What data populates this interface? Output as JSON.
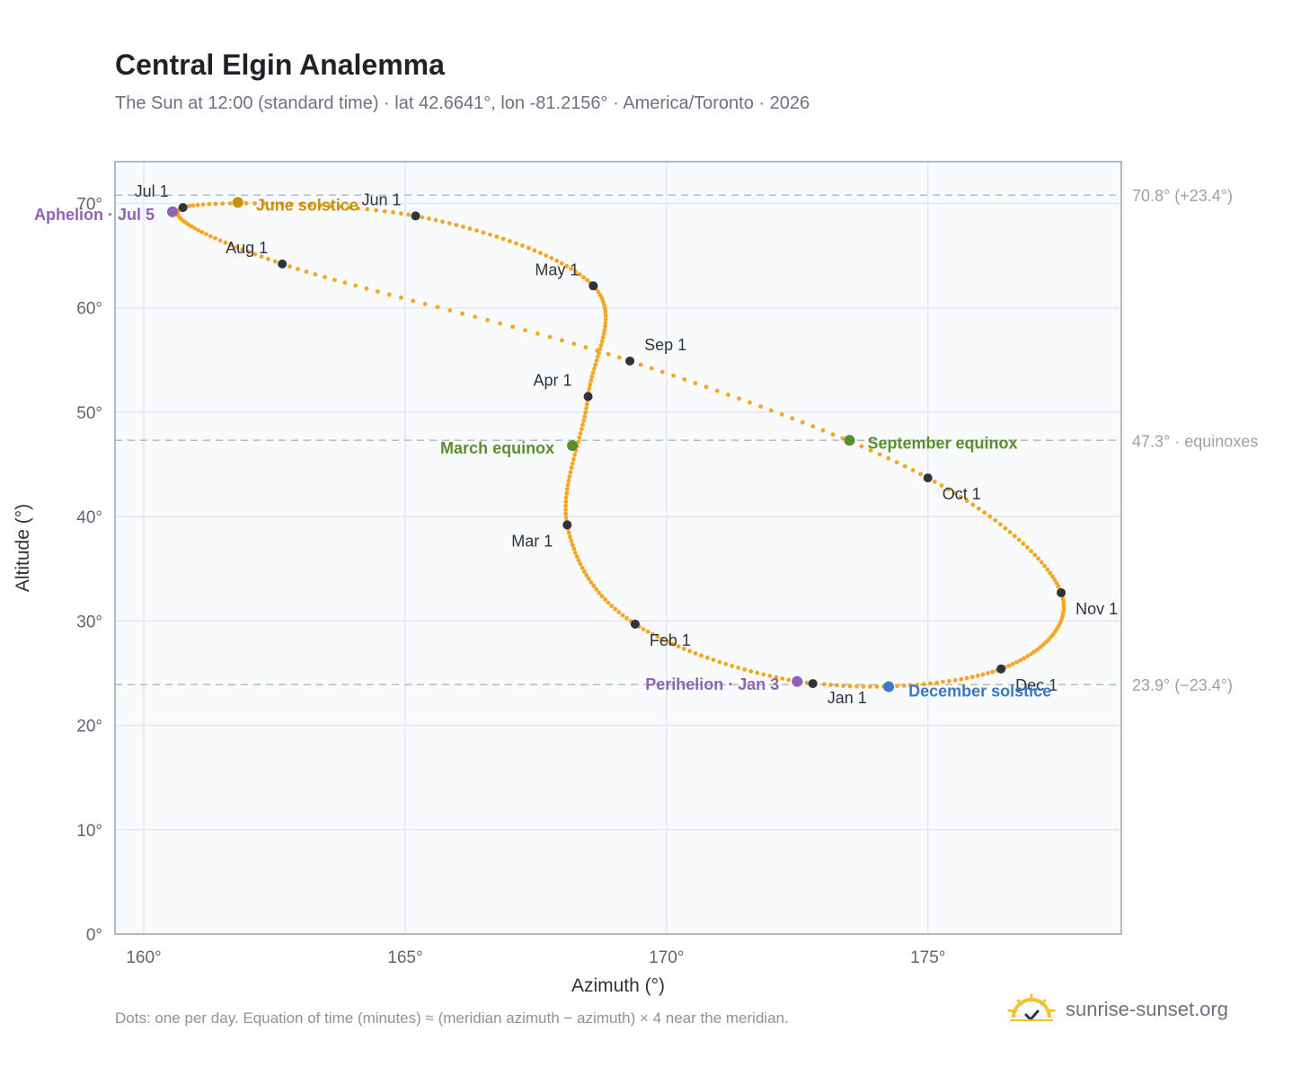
{
  "header": {
    "title": "Central Elgin Analemma",
    "subtitle": "The Sun at 12:00 (standard time) · lat 42.6641°, lon -81.2156° · America/Toronto · 2026"
  },
  "footer": {
    "note": "Dots: one per day. Equation of time (minutes) ≈ (meridian azimuth − azimuth) × 4 near the meridian.",
    "brand": "sunrise-sunset.org"
  },
  "chart_data": {
    "type": "scatter",
    "title": "Central Elgin Analemma",
    "xlabel": "Azimuth (°)",
    "ylabel": "Altitude (°)",
    "xlim": [
      159.45,
      178.7
    ],
    "ylim": [
      0,
      74
    ],
    "x_ticks": [
      160,
      165,
      170,
      175
    ],
    "x_tick_labels": [
      "160°",
      "165°",
      "170°",
      "175°"
    ],
    "y_ticks": [
      0,
      10,
      20,
      30,
      40,
      50,
      60,
      70
    ],
    "y_tick_labels": [
      "0°",
      "10°",
      "20°",
      "30°",
      "40°",
      "50°",
      "60°",
      "70°"
    ],
    "grid": true,
    "colors": {
      "path": "#f5a623",
      "month": "#2e343b",
      "solstice_june": "#c9900f",
      "solstice_dec": "#3a78c9",
      "equinox": "#5a8f2c",
      "apsis": "#8e63b5",
      "plot_bg": "#f8fafc",
      "reference": "#b4bcc4",
      "reference_text": "#9aa1a9"
    },
    "path_keypoints": [
      {
        "date": "Jan 1",
        "az": 172.8,
        "alt": 24.0
      },
      {
        "date": "Feb 1",
        "az": 169.4,
        "alt": 29.7
      },
      {
        "date": "Mar 1",
        "az": 168.1,
        "alt": 39.2
      },
      {
        "date": "Apr 1",
        "az": 168.5,
        "alt": 51.5
      },
      {
        "date": "May 1",
        "az": 168.6,
        "alt": 62.1
      },
      {
        "date": "Jun 1",
        "az": 165.2,
        "alt": 68.8
      },
      {
        "date": "Jul 1",
        "az": 160.75,
        "alt": 69.6
      },
      {
        "date": "Aug 1",
        "az": 162.65,
        "alt": 64.2
      },
      {
        "date": "Sep 1",
        "az": 169.3,
        "alt": 54.9
      },
      {
        "date": "Oct 1",
        "az": 175.0,
        "alt": 43.7
      },
      {
        "date": "Nov 1",
        "az": 177.55,
        "alt": 32.7
      },
      {
        "date": "Dec 1",
        "az": 176.4,
        "alt": 25.4
      },
      {
        "date": "Dec 31",
        "az": 172.9,
        "alt": 24.0
      }
    ],
    "month_markers": [
      {
        "label": "Jan 1",
        "az": 172.8,
        "alt": 24.0,
        "anchor": "start",
        "dx": 16,
        "dy": 22
      },
      {
        "label": "Feb 1",
        "az": 169.4,
        "alt": 29.7,
        "anchor": "start",
        "dx": 16,
        "dy": 24
      },
      {
        "label": "Mar 1",
        "az": 168.1,
        "alt": 39.2,
        "anchor": "end",
        "dx": -16,
        "dy": 24
      },
      {
        "label": "Apr 1",
        "az": 168.5,
        "alt": 51.5,
        "anchor": "end",
        "dx": -18,
        "dy": -12
      },
      {
        "label": "May 1",
        "az": 168.6,
        "alt": 62.1,
        "anchor": "end",
        "dx": -16,
        "dy": -12
      },
      {
        "label": "Jun 1",
        "az": 165.2,
        "alt": 68.8,
        "anchor": "end",
        "dx": -16,
        "dy": -12
      },
      {
        "label": "Jul 1",
        "az": 160.75,
        "alt": 69.6,
        "anchor": "end",
        "dx": -16,
        "dy": -12
      },
      {
        "label": "Aug 1",
        "az": 162.65,
        "alt": 64.2,
        "anchor": "end",
        "dx": -16,
        "dy": -12
      },
      {
        "label": "Sep 1",
        "az": 169.3,
        "alt": 54.9,
        "anchor": "start",
        "dx": 16,
        "dy": -12
      },
      {
        "label": "Oct 1",
        "az": 175.0,
        "alt": 43.7,
        "anchor": "start",
        "dx": 16,
        "dy": 24
      },
      {
        "label": "Nov 1",
        "az": 177.55,
        "alt": 32.7,
        "anchor": "start",
        "dx": 16,
        "dy": 24
      },
      {
        "label": "Dec 1",
        "az": 176.4,
        "alt": 25.4,
        "anchor": "start",
        "dx": 16,
        "dy": 24
      }
    ],
    "special_events": [
      {
        "label": "June solstice",
        "az": 161.8,
        "alt": 70.1,
        "color": "#c9900f",
        "anchor": "start",
        "dx": 20,
        "dy": 9
      },
      {
        "label": "December solstice",
        "az": 174.25,
        "alt": 23.7,
        "color": "#3a78c9",
        "anchor": "start",
        "dx": 22,
        "dy": 11
      },
      {
        "label": "March equinox",
        "az": 168.2,
        "alt": 46.8,
        "color": "#5a8f2c",
        "anchor": "end",
        "dx": -20,
        "dy": 9
      },
      {
        "label": "September equinox",
        "az": 173.5,
        "alt": 47.3,
        "color": "#5a8f2c",
        "anchor": "start",
        "dx": 20,
        "dy": 9
      },
      {
        "label": "Aphelion · Jul 5",
        "az": 160.55,
        "alt": 69.2,
        "color": "#8e63b5",
        "anchor": "end",
        "dx": -20,
        "dy": 9
      },
      {
        "label": "Perihelion · Jan 3",
        "az": 172.5,
        "alt": 24.2,
        "color": "#8e63b5",
        "anchor": "end",
        "dx": -20,
        "dy": 9
      }
    ],
    "reference_lines": [
      {
        "alt": 70.8,
        "label": "70.8° (+23.4°)"
      },
      {
        "alt": 47.3,
        "label": "47.3° · equinoxes"
      },
      {
        "alt": 23.9,
        "label": "23.9° (−23.4°)"
      }
    ]
  }
}
